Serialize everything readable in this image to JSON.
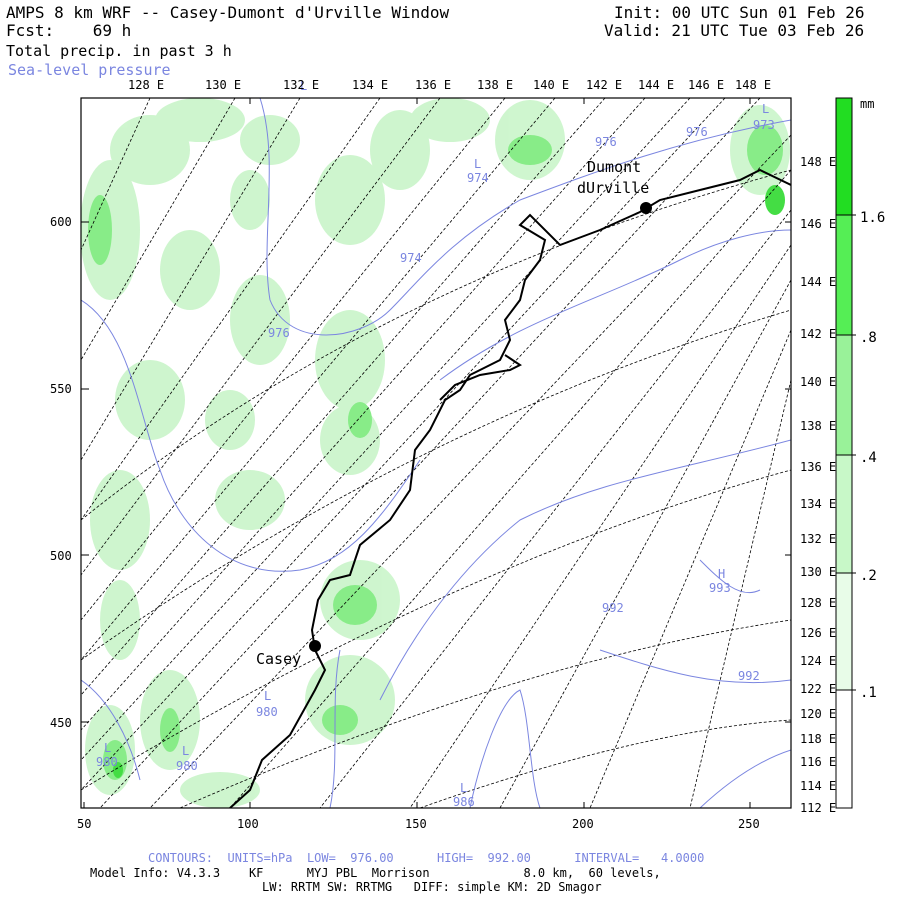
{
  "header": {
    "title": "AMPS 8 km WRF -- Casey-Dumont d'Urville Window",
    "fcst_label": "Fcst:",
    "fcst_value": "69 h",
    "field1": "Total precip. in past 3 h",
    "field2": "Sea-level pressure",
    "init": "Init: 00 UTC Sun 01 Feb 26",
    "valid": "Valid: 21 UTC Tue 03 Feb 26"
  },
  "axes": {
    "top_lon_labels": [
      "128 E",
      "130 E",
      "132 E",
      "134 E",
      "136 E",
      "138 E",
      "140 E",
      "142 E",
      "144 E",
      "146 E",
      "148 E"
    ],
    "right_lon_labels": [
      "148 E",
      "146 E",
      "144 E",
      "142 E",
      "140 E",
      "138 E",
      "136 E",
      "134 E",
      "132 E",
      "130 E",
      "128 E",
      "126 E",
      "124 E",
      "122 E",
      "120 E",
      "118 E",
      "116 E",
      "114 E",
      "112 E"
    ],
    "left_labels": [
      "600",
      "550",
      "500",
      "450"
    ],
    "bottom_labels": [
      "50",
      "100",
      "150",
      "200",
      "250"
    ]
  },
  "colorbar": {
    "unit": "mm",
    "labels": [
      "1.6",
      ".8",
      ".4",
      ".2",
      ".1"
    ],
    "colors": [
      "#22dd22",
      "#55ee55",
      "#99f299",
      "#c8f8c8",
      "#e8fce8"
    ]
  },
  "places": [
    {
      "name": "Casey"
    },
    {
      "name": "Dumont"
    },
    {
      "name": "dUrville"
    }
  ],
  "isobar_labels": [
    "976",
    "976",
    "973",
    "974",
    "974",
    "976",
    "980",
    "980",
    "980",
    "986",
    "992",
    "993",
    "992"
  ],
  "pressure_markers": [
    "L",
    "L",
    "L",
    "L",
    "L",
    "L",
    "L",
    "H"
  ],
  "footer": {
    "contours": "CONTOURS:  UNITS=hPa  LOW=  976.00      HIGH=  992.00      INTERVAL=   4.0000",
    "model1": "Model Info: V4.3.3    KF      MYJ PBL  Morrison             8.0 km,  60 levels,",
    "model2": "LW: RRTM SW: RRTMG   DIFF: simple KM: 2D Smagor"
  },
  "colors": {
    "isobar": "#7b86e0",
    "grid": "#000000",
    "coast": "#000000",
    "precip_light": "#ccf5cc",
    "precip_mid": "#88ec88",
    "precip_heavy": "#44dd44"
  }
}
